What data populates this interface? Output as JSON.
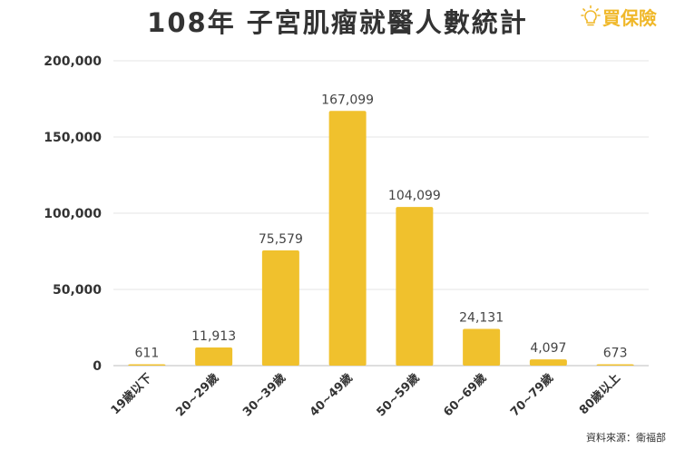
{
  "title": "108年 子宮肌瘤就醫人數統計",
  "logo": {
    "text": "買保險",
    "icon": "lightbulb-icon",
    "color": "#f0b82a"
  },
  "source": "資料來源：衛福部",
  "chart_data": {
    "type": "bar",
    "title": "108年 子宮肌瘤就醫人數統計",
    "xlabel": "",
    "ylabel": "",
    "categories": [
      "19歲以下",
      "20~29歲",
      "30~39歲",
      "40~49歲",
      "50~59歲",
      "60~69歲",
      "70~79歲",
      "80歲以上"
    ],
    "values": [
      611,
      11913,
      75579,
      167099,
      104099,
      24131,
      4097,
      673
    ],
    "data_labels": [
      "611",
      "11,913",
      "75,579",
      "167,099",
      "104,099",
      "24,131",
      "4,097",
      "673"
    ],
    "yticks": [
      0,
      50000,
      100000,
      150000,
      200000
    ],
    "ytick_labels": [
      "0",
      "50,000",
      "100,000",
      "150,000",
      "200,000"
    ],
    "ylim": [
      0,
      200000
    ],
    "grid": true,
    "legend": "none",
    "bar_color": "#f0c12d"
  }
}
